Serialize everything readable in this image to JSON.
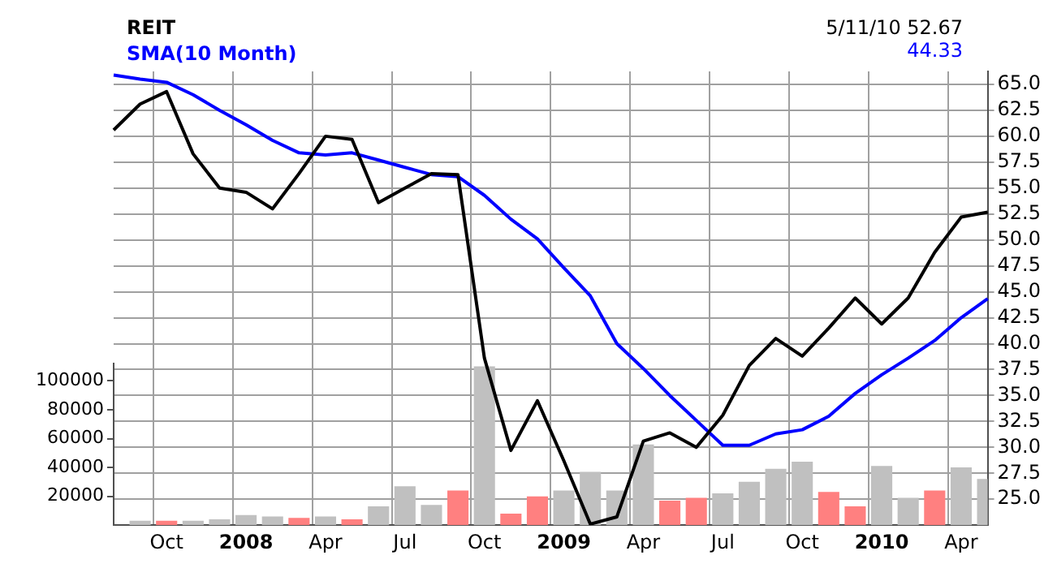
{
  "chart_data": {
    "type": "line",
    "title": "REIT",
    "legend": "top left",
    "grid": true,
    "categories": [
      null,
      null,
      "Oct",
      null,
      null,
      "2008",
      null,
      null,
      "Apr",
      null,
      null,
      "Jul",
      null,
      null,
      "Oct",
      null,
      null,
      "2009",
      null,
      null,
      "Apr",
      null,
      null,
      "Jul",
      null,
      null,
      "Oct",
      null,
      null,
      "2010",
      null,
      null,
      "Apr",
      null
    ],
    "series": [
      {
        "color": "#000000",
        "values": [
          60.6,
          63.1,
          64.3,
          58.3,
          55.0,
          54.6,
          53.0,
          56.4,
          60.0,
          59.7,
          53.6,
          55.0,
          56.4,
          56.3,
          38.6,
          29.7,
          34.5,
          28.7,
          22.6,
          23.3,
          30.6,
          31.4,
          30.0,
          33.1,
          37.9,
          40.5,
          38.8,
          41.5,
          44.4,
          41.9,
          44.4,
          48.8,
          52.2,
          52.67
        ]
      },
      {
        "name": "SMA(10 Month)",
        "color": "#0000ff",
        "values": [
          65.9,
          65.5,
          65.2,
          64.0,
          62.5,
          61.1,
          59.6,
          58.4,
          58.2,
          58.4,
          57.7,
          57.0,
          56.3,
          56.1,
          54.3,
          52.0,
          50.1,
          47.3,
          44.6,
          40.0,
          37.6,
          35.0,
          32.6,
          30.2,
          30.2,
          31.3,
          31.7,
          33.0,
          35.2,
          37.0,
          38.6,
          40.3,
          42.5,
          44.33
        ]
      },
      {
        "type": "bar",
        "axis": "y2",
        "colors": [
          "#c0c0c0",
          "#c0c0c0",
          "#ff8080",
          "#c0c0c0",
          "#c0c0c0",
          "#c0c0c0",
          "#c0c0c0",
          "#ff8080",
          "#c0c0c0",
          "#ff8080",
          "#c0c0c0",
          "#c0c0c0",
          "#c0c0c0",
          "#ff8080",
          "#c0c0c0",
          "#ff8080",
          "#ff8080",
          "#c0c0c0",
          "#c0c0c0",
          "#c0c0c0",
          "#c0c0c0",
          "#ff8080",
          "#ff8080",
          "#c0c0c0",
          "#c0c0c0",
          "#c0c0c0",
          "#c0c0c0",
          "#ff8080",
          "#ff8080",
          "#c0c0c0",
          "#c0c0c0",
          "#ff8080",
          "#c0c0c0",
          "#c0c0c0"
        ],
        "values": [
          null,
          3000,
          3000,
          3000,
          4000,
          7000,
          6000,
          5000,
          6000,
          4000,
          13000,
          27000,
          14000,
          24000,
          110000,
          8000,
          20000,
          24000,
          37000,
          24000,
          56000,
          17000,
          19000,
          22000,
          30000,
          39000,
          44000,
          23000,
          13000,
          41000,
          19000,
          24000,
          40000,
          32000
        ]
      }
    ],
    "ylim": [
      22.5,
      66.25
    ],
    "yticks": [
      {
        "value": 25,
        "label": "25.0"
      },
      {
        "value": 27.5,
        "label": "27.5"
      },
      {
        "value": 30,
        "label": "30.0"
      },
      {
        "value": 32.5,
        "label": "32.5"
      },
      {
        "value": 35,
        "label": "35.0"
      },
      {
        "value": 37.5,
        "label": "37.5"
      },
      {
        "value": 40,
        "label": "40.0"
      },
      {
        "value": 42.5,
        "label": "42.5"
      },
      {
        "value": 45,
        "label": "45.0"
      },
      {
        "value": 47.5,
        "label": "47.5"
      },
      {
        "value": 50,
        "label": "50.0"
      },
      {
        "value": 52.5,
        "label": "52.5"
      },
      {
        "value": 55,
        "label": "55.0"
      },
      {
        "value": 57.5,
        "label": "57.5"
      },
      {
        "value": 60,
        "label": "60.0"
      },
      {
        "value": 62.5,
        "label": "62.5"
      },
      {
        "value": 65,
        "label": "65.0"
      }
    ],
    "y2lim": [
      0,
      112000
    ],
    "y2ticks": [
      20000,
      40000,
      60000,
      80000,
      100000
    ],
    "annotations": [
      "5/11/10 52.67",
      "44.33"
    ]
  }
}
